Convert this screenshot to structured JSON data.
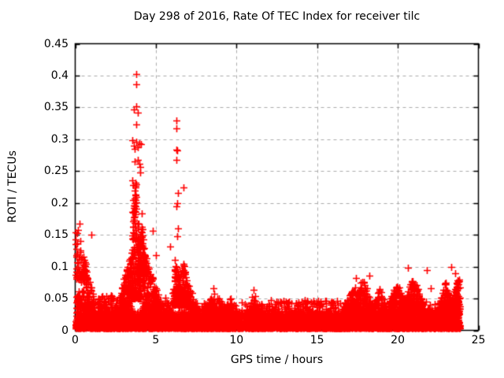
{
  "title": "Day 298 of 2016, Rate Of TEC Index for receiver tilc",
  "xlabel": "GPS time / hours",
  "ylabel": "ROTI / TECUs",
  "colors": {
    "marker": "#ff0000",
    "grid": "#ababab",
    "axis": "#000000",
    "background": "#ffffff",
    "text": "#000000"
  },
  "chart_data": {
    "type": "scatter",
    "marker": "plus",
    "marker_color": "#ff0000",
    "grid": "dashed-major",
    "legend": "none",
    "title": "Day 298 of 2016, Rate Of TEC Index for receiver tilc",
    "xlabel": "GPS time / hours",
    "ylabel": "ROTI / TECUs",
    "xlim": [
      0,
      25
    ],
    "ylim": [
      0,
      0.45
    ],
    "xticks": [
      {
        "value": 0,
        "label": "0"
      },
      {
        "value": 5,
        "label": "5"
      },
      {
        "value": 10,
        "label": "10"
      },
      {
        "value": 15,
        "label": "15"
      },
      {
        "value": 20,
        "label": "20"
      },
      {
        "value": 25,
        "label": "25"
      }
    ],
    "yticks": [
      {
        "value": 0,
        "label": "0"
      },
      {
        "value": 0.05,
        "label": "0.05"
      },
      {
        "value": 0.1,
        "label": "0.1"
      },
      {
        "value": 0.15,
        "label": "0.15"
      },
      {
        "value": 0.2,
        "label": "0.2"
      },
      {
        "value": 0.25,
        "label": "0.25"
      },
      {
        "value": 0.3,
        "label": "0.3"
      },
      {
        "value": 0.35,
        "label": "0.35"
      },
      {
        "value": 0.4,
        "label": "0.4"
      },
      {
        "value": 0.45,
        "label": "0.45"
      }
    ],
    "x_data_range": [
      0,
      23.85
    ],
    "seed": 2982016,
    "baseline_band": {
      "x0": 0,
      "x1": 23.85,
      "y_min": 0.002,
      "y_max": 0.032,
      "n": 6000
    },
    "grass": {
      "x0": 0,
      "x1": 23.85,
      "y_min": 0.018,
      "y_max": 0.045,
      "n": 450
    },
    "clusters": [
      {
        "x0": 0.02,
        "x1": 0.75,
        "y0": 0.08,
        "y1": 0.165,
        "n": 70,
        "shape": "left"
      },
      {
        "x0": 0.05,
        "x1": 1.15,
        "y0": 0.035,
        "y1": 0.105,
        "n": 110,
        "shape": "hump"
      },
      {
        "x0": 1.4,
        "x1": 2.6,
        "y0": 0.028,
        "y1": 0.055,
        "n": 70,
        "shape": "flat"
      },
      {
        "x0": 2.75,
        "x1": 3.45,
        "y0": 0.03,
        "y1": 0.125,
        "n": 140,
        "shape": "right"
      },
      {
        "x0": 3.45,
        "x1": 4.05,
        "y0": 0.05,
        "y1": 0.26,
        "n": 230,
        "shape": "hump"
      },
      {
        "x0": 3.9,
        "x1": 4.4,
        "y0": 0.09,
        "y1": 0.19,
        "n": 100,
        "shape": "hump"
      },
      {
        "x0": 4.15,
        "x1": 5.15,
        "y0": 0.03,
        "y1": 0.135,
        "n": 170,
        "shape": "left"
      },
      {
        "x0": 5.0,
        "x1": 6.0,
        "y0": 0.022,
        "y1": 0.058,
        "n": 70,
        "shape": "hump"
      },
      {
        "x0": 6.05,
        "x1": 6.5,
        "y0": 0.04,
        "y1": 0.135,
        "n": 130,
        "shape": "hump"
      },
      {
        "x0": 6.35,
        "x1": 7.05,
        "y0": 0.04,
        "y1": 0.115,
        "n": 140,
        "shape": "hump"
      },
      {
        "x0": 7.0,
        "x1": 7.65,
        "y0": 0.02,
        "y1": 0.075,
        "n": 80,
        "shape": "left"
      },
      {
        "x0": 7.9,
        "x1": 9.35,
        "y0": 0.024,
        "y1": 0.062,
        "n": 130,
        "shape": "hump"
      },
      {
        "x0": 9.3,
        "x1": 10.05,
        "y0": 0.02,
        "y1": 0.055,
        "n": 60,
        "shape": "hump"
      },
      {
        "x0": 10.75,
        "x1": 11.35,
        "y0": 0.025,
        "y1": 0.063,
        "n": 45,
        "shape": "hump"
      },
      {
        "x0": 11.9,
        "x1": 16.55,
        "y0": 0.018,
        "y1": 0.048,
        "n": 160,
        "shape": "flat"
      },
      {
        "x0": 16.6,
        "x1": 17.35,
        "y0": 0.025,
        "y1": 0.072,
        "n": 100,
        "shape": "right"
      },
      {
        "x0": 17.25,
        "x1": 18.45,
        "y0": 0.028,
        "y1": 0.085,
        "n": 170,
        "shape": "hump"
      },
      {
        "x0": 18.4,
        "x1": 19.35,
        "y0": 0.02,
        "y1": 0.068,
        "n": 100,
        "shape": "hump"
      },
      {
        "x0": 19.4,
        "x1": 20.5,
        "y0": 0.025,
        "y1": 0.08,
        "n": 180,
        "shape": "hump"
      },
      {
        "x0": 20.4,
        "x1": 21.55,
        "y0": 0.028,
        "y1": 0.088,
        "n": 200,
        "shape": "hump"
      },
      {
        "x0": 21.55,
        "x1": 22.55,
        "y0": 0.012,
        "y1": 0.045,
        "n": 70,
        "shape": "hump"
      },
      {
        "x0": 22.5,
        "x1": 23.45,
        "y0": 0.02,
        "y1": 0.08,
        "n": 160,
        "shape": "hump"
      },
      {
        "x0": 23.3,
        "x1": 23.85,
        "y0": 0.025,
        "y1": 0.092,
        "n": 130,
        "shape": "right"
      }
    ],
    "outliers": [
      [
        3.76,
        0.402
      ],
      [
        3.76,
        0.386
      ],
      [
        3.77,
        0.352
      ],
      [
        3.66,
        0.347
      ],
      [
        3.86,
        0.342
      ],
      [
        3.77,
        0.323
      ],
      [
        3.55,
        0.298
      ],
      [
        3.63,
        0.29
      ],
      [
        3.71,
        0.285
      ],
      [
        3.79,
        0.296
      ],
      [
        3.87,
        0.288
      ],
      [
        3.96,
        0.293
      ],
      [
        4.06,
        0.292
      ],
      [
        3.7,
        0.265
      ],
      [
        3.89,
        0.268
      ],
      [
        3.97,
        0.261
      ],
      [
        4.03,
        0.257
      ],
      [
        4.01,
        0.248
      ],
      [
        3.56,
        0.236
      ],
      [
        3.61,
        0.228
      ],
      [
        3.67,
        0.219
      ],
      [
        3.73,
        0.212
      ],
      [
        3.61,
        0.205
      ],
      [
        3.69,
        0.196
      ],
      [
        3.56,
        0.186
      ],
      [
        3.64,
        0.178
      ],
      [
        6.28,
        0.33
      ],
      [
        6.29,
        0.317
      ],
      [
        6.28,
        0.284
      ],
      [
        6.34,
        0.283
      ],
      [
        6.29,
        0.268
      ],
      [
        6.39,
        0.216
      ],
      [
        6.34,
        0.2
      ],
      [
        6.29,
        0.195
      ],
      [
        6.73,
        0.225
      ],
      [
        6.35,
        0.16
      ],
      [
        6.3,
        0.148
      ],
      [
        4.81,
        0.156
      ],
      [
        5.86,
        0.132
      ],
      [
        5.0,
        0.118
      ],
      [
        1.02,
        0.15
      ],
      [
        0.28,
        0.168
      ],
      [
        0.15,
        0.158
      ],
      [
        17.42,
        0.082
      ],
      [
        18.25,
        0.086
      ],
      [
        8.55,
        0.066
      ],
      [
        11.05,
        0.064
      ],
      [
        20.62,
        0.098
      ],
      [
        21.8,
        0.094
      ],
      [
        22.05,
        0.066
      ],
      [
        23.32,
        0.1
      ],
      [
        23.55,
        0.09
      ]
    ]
  }
}
